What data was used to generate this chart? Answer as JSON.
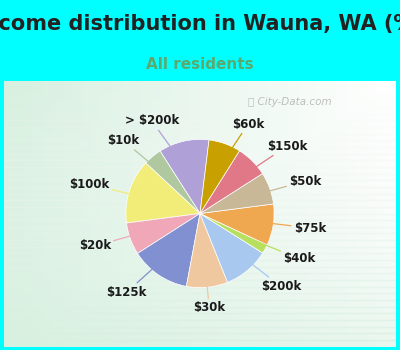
{
  "title": "Income distribution in Wauna, WA (%)",
  "subtitle": "All residents",
  "background_color": "#00FFFF",
  "watermark": "City-Data.com",
  "labels": [
    "> $200k",
    "$10k",
    "$100k",
    "$20k",
    "$125k",
    "$30k",
    "$200k",
    "$40k",
    "$75k",
    "$50k",
    "$150k",
    "$60k"
  ],
  "sizes": [
    11,
    4,
    14,
    7,
    13,
    9,
    10,
    2,
    9,
    7,
    7,
    7
  ],
  "colors": [
    "#b0a0d8",
    "#b0c8a0",
    "#f2ec78",
    "#f0a8b8",
    "#8090d0",
    "#f0c8a0",
    "#a8c8f0",
    "#b8e060",
    "#f0a850",
    "#c8b898",
    "#e07888",
    "#c8a000"
  ],
  "startangle": 83,
  "label_fontsize": 8.5,
  "title_fontsize": 15,
  "subtitle_fontsize": 11,
  "title_color": "#222222",
  "subtitle_color": "#5aaa70"
}
